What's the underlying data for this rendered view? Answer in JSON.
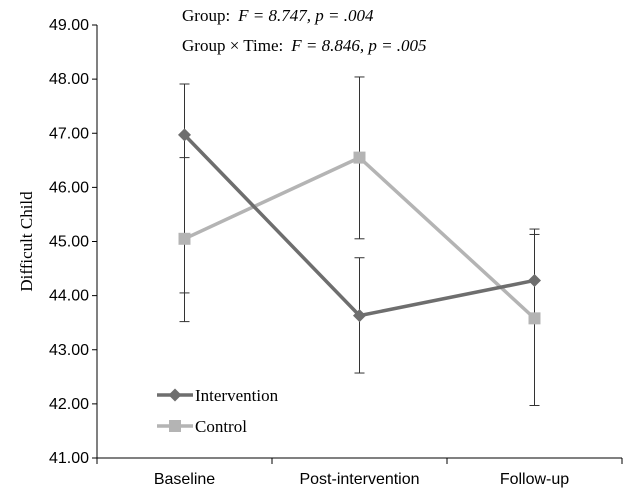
{
  "chart_data": {
    "type": "line",
    "title": "",
    "xlabel": "",
    "ylabel": "Difficult  Child",
    "ylim": [
      41,
      49
    ],
    "yticks": [
      "41.00",
      "42.00",
      "43.00",
      "44.00",
      "45.00",
      "46.00",
      "47.00",
      "48.00",
      "49.00"
    ],
    "categories": [
      "Baseline",
      "Post-intervention",
      "Follow-up"
    ],
    "grid": false,
    "legend": "bottom-left",
    "annotations": [
      {
        "label": "Group:",
        "stat": "F = 8.747, p = .004"
      },
      {
        "label": "Group × Time:",
        "stat": "F = 8.846, p = .005"
      }
    ],
    "series": [
      {
        "name": "Intervention",
        "color": "#6e6e6e",
        "marker": "diamond",
        "values": [
          46.97,
          43.63,
          44.28
        ],
        "error_low": [
          43.52,
          42.57,
          43.55
        ],
        "error_high": [
          47.91,
          44.7,
          45.23
        ]
      },
      {
        "name": "Control",
        "color": "#b4b4b4",
        "marker": "square",
        "values": [
          45.05,
          46.55,
          43.58
        ],
        "error_low": [
          44.05,
          45.05,
          41.97
        ],
        "error_high": [
          46.55,
          48.04,
          45.13
        ]
      }
    ]
  }
}
